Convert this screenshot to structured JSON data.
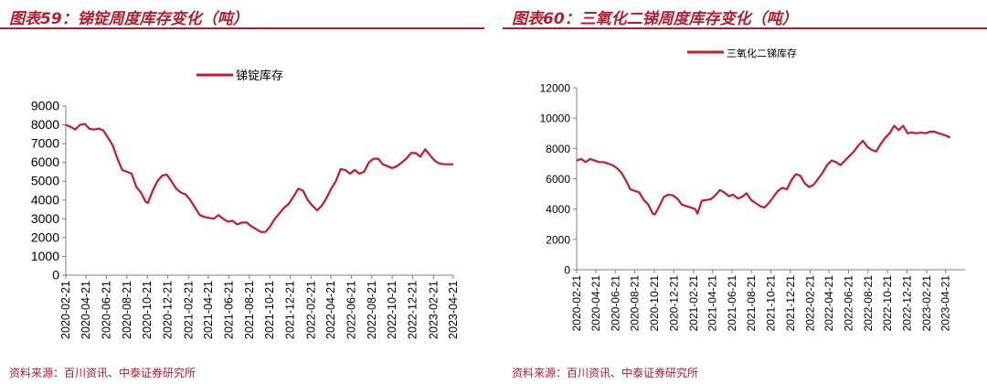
{
  "colors": {
    "series": "#c8192e",
    "title": "#b71c2b",
    "axis": "#7f7f7f"
  },
  "source_left": "资料来源：百川资讯、中泰证券研究所",
  "source_right": "资料来源：百川资讯、中泰证券研究所",
  "chart_data": [
    {
      "title": "图表59：锑锭周度库存变化（吨）",
      "type": "line",
      "ylim": [
        0,
        9000
      ],
      "yticks": [
        0,
        1000,
        2000,
        3000,
        4000,
        5000,
        6000,
        7000,
        8000,
        9000
      ],
      "xlim": [
        "2020-02-21",
        "2023-04-21"
      ],
      "xticks": [
        "2020-02-21",
        "2020-04-21",
        "2020-06-21",
        "2020-08-21",
        "2020-10-21",
        "2020-12-21",
        "2021-02-21",
        "2021-04-21",
        "2021-06-21",
        "2021-08-21",
        "2021-10-21",
        "2021-12-21",
        "2022-02-21",
        "2022-04-21",
        "2022-06-21",
        "2022-08-21",
        "2022-10-21",
        "2022-12-21",
        "2023-02-21",
        "2023-04-21"
      ],
      "legend_position": "top",
      "grid": false,
      "series": [
        {
          "name": "锑锭库存",
          "points": [
            [
              "2020-02-21",
              8000
            ],
            [
              "2020-03-06",
              7900
            ],
            [
              "2020-03-20",
              7750
            ],
            [
              "2020-04-03",
              8000
            ],
            [
              "2020-04-17",
              8050
            ],
            [
              "2020-05-01",
              7800
            ],
            [
              "2020-05-15",
              7750
            ],
            [
              "2020-05-29",
              7800
            ],
            [
              "2020-06-12",
              7700
            ],
            [
              "2020-06-26",
              7300
            ],
            [
              "2020-07-10",
              6900
            ],
            [
              "2020-07-24",
              6200
            ],
            [
              "2020-08-07",
              5600
            ],
            [
              "2020-08-21",
              5500
            ],
            [
              "2020-09-04",
              5400
            ],
            [
              "2020-09-18",
              4700
            ],
            [
              "2020-10-02",
              4400
            ],
            [
              "2020-10-16",
              3900
            ],
            [
              "2020-10-23",
              3850
            ],
            [
              "2020-11-06",
              4500
            ],
            [
              "2020-11-20",
              5000
            ],
            [
              "2020-12-04",
              5300
            ],
            [
              "2020-12-18",
              5350
            ],
            [
              "2021-01-01",
              5000
            ],
            [
              "2021-01-15",
              4600
            ],
            [
              "2021-01-29",
              4400
            ],
            [
              "2021-02-12",
              4300
            ],
            [
              "2021-02-26",
              4000
            ],
            [
              "2021-03-12",
              3600
            ],
            [
              "2021-03-26",
              3200
            ],
            [
              "2021-04-09",
              3100
            ],
            [
              "2021-04-23",
              3050
            ],
            [
              "2021-05-07",
              3000
            ],
            [
              "2021-05-21",
              3200
            ],
            [
              "2021-06-04",
              3000
            ],
            [
              "2021-06-18",
              2850
            ],
            [
              "2021-07-02",
              2900
            ],
            [
              "2021-07-16",
              2700
            ],
            [
              "2021-07-30",
              2800
            ],
            [
              "2021-08-13",
              2800
            ],
            [
              "2021-08-27",
              2600
            ],
            [
              "2021-09-10",
              2450
            ],
            [
              "2021-09-24",
              2300
            ],
            [
              "2021-10-08",
              2300
            ],
            [
              "2021-10-22",
              2600
            ],
            [
              "2021-11-05",
              3000
            ],
            [
              "2021-11-19",
              3300
            ],
            [
              "2021-12-03",
              3600
            ],
            [
              "2021-12-17",
              3800
            ],
            [
              "2021-12-31",
              4200
            ],
            [
              "2022-01-14",
              4600
            ],
            [
              "2022-01-28",
              4500
            ],
            [
              "2022-02-11",
              4000
            ],
            [
              "2022-02-25",
              3700
            ],
            [
              "2022-03-11",
              3450
            ],
            [
              "2022-03-25",
              3700
            ],
            [
              "2022-04-08",
              4100
            ],
            [
              "2022-04-22",
              4600
            ],
            [
              "2022-05-06",
              5000
            ],
            [
              "2022-05-20",
              5650
            ],
            [
              "2022-06-03",
              5600
            ],
            [
              "2022-06-17",
              5400
            ],
            [
              "2022-07-01",
              5600
            ],
            [
              "2022-07-15",
              5400
            ],
            [
              "2022-07-29",
              5500
            ],
            [
              "2022-08-12",
              6000
            ],
            [
              "2022-08-26",
              6200
            ],
            [
              "2022-09-09",
              6200
            ],
            [
              "2022-09-23",
              5900
            ],
            [
              "2022-10-07",
              5800
            ],
            [
              "2022-10-21",
              5700
            ],
            [
              "2022-11-04",
              5800
            ],
            [
              "2022-11-18",
              6000
            ],
            [
              "2022-12-02",
              6200
            ],
            [
              "2022-12-16",
              6500
            ],
            [
              "2022-12-30",
              6500
            ],
            [
              "2023-01-13",
              6300
            ],
            [
              "2023-01-27",
              6700
            ],
            [
              "2023-02-10",
              6400
            ],
            [
              "2023-02-24",
              6100
            ],
            [
              "2023-03-10",
              5950
            ],
            [
              "2023-03-24",
              5900
            ],
            [
              "2023-04-07",
              5900
            ],
            [
              "2023-04-21",
              5900
            ]
          ]
        }
      ]
    },
    {
      "title": "图表60：三氧化二锑周度库存变化（吨）",
      "type": "line",
      "ylim": [
        0,
        12000
      ],
      "yticks": [
        0,
        2000,
        4000,
        6000,
        8000,
        10000,
        12000
      ],
      "xlim": [
        "2020-02-21",
        "2023-06-21"
      ],
      "xticks": [
        "2020-02-21",
        "2020-04-21",
        "2020-06-21",
        "2020-08-21",
        "2020-10-21",
        "2020-12-21",
        "2021-02-21",
        "2021-04-21",
        "2021-06-21",
        "2021-08-21",
        "2021-10-21",
        "2021-12-21",
        "2022-02-21",
        "2022-04-21",
        "2022-06-21",
        "2022-08-21",
        "2022-10-21",
        "2022-12-21",
        "2023-02-21",
        "2023-04-21"
      ],
      "legend_position": "top",
      "grid": false,
      "series": [
        {
          "name": "三氧化二锑库存",
          "points": [
            [
              "2020-02-21",
              7200
            ],
            [
              "2020-03-06",
              7300
            ],
            [
              "2020-03-20",
              7100
            ],
            [
              "2020-04-03",
              7300
            ],
            [
              "2020-04-17",
              7200
            ],
            [
              "2020-05-01",
              7100
            ],
            [
              "2020-05-15",
              7100
            ],
            [
              "2020-05-29",
              7000
            ],
            [
              "2020-06-12",
              6900
            ],
            [
              "2020-06-26",
              6700
            ],
            [
              "2020-07-10",
              6400
            ],
            [
              "2020-07-24",
              5900
            ],
            [
              "2020-08-07",
              5300
            ],
            [
              "2020-08-21",
              5200
            ],
            [
              "2020-09-04",
              5100
            ],
            [
              "2020-09-18",
              4600
            ],
            [
              "2020-10-02",
              4300
            ],
            [
              "2020-10-16",
              3700
            ],
            [
              "2020-10-23",
              3650
            ],
            [
              "2020-11-06",
              4200
            ],
            [
              "2020-11-20",
              4800
            ],
            [
              "2020-12-04",
              4950
            ],
            [
              "2020-12-18",
              4900
            ],
            [
              "2021-01-01",
              4700
            ],
            [
              "2021-01-15",
              4300
            ],
            [
              "2021-01-29",
              4200
            ],
            [
              "2021-02-12",
              4100
            ],
            [
              "2021-02-26",
              4000
            ],
            [
              "2021-03-05",
              3700
            ],
            [
              "2021-03-19",
              4550
            ],
            [
              "2021-04-02",
              4600
            ],
            [
              "2021-04-16",
              4650
            ],
            [
              "2021-04-30",
              4900
            ],
            [
              "2021-05-14",
              5250
            ],
            [
              "2021-05-28",
              5100
            ],
            [
              "2021-06-11",
              4850
            ],
            [
              "2021-06-25",
              4950
            ],
            [
              "2021-07-09",
              4700
            ],
            [
              "2021-07-23",
              4800
            ],
            [
              "2021-08-06",
              5050
            ],
            [
              "2021-08-20",
              4600
            ],
            [
              "2021-09-03",
              4400
            ],
            [
              "2021-09-17",
              4200
            ],
            [
              "2021-10-01",
              4100
            ],
            [
              "2021-10-15",
              4400
            ],
            [
              "2021-10-29",
              4800
            ],
            [
              "2021-11-12",
              5200
            ],
            [
              "2021-11-26",
              5400
            ],
            [
              "2021-12-10",
              5300
            ],
            [
              "2021-12-24",
              5900
            ],
            [
              "2022-01-07",
              6300
            ],
            [
              "2022-01-21",
              6200
            ],
            [
              "2022-02-04",
              5700
            ],
            [
              "2022-02-18",
              5450
            ],
            [
              "2022-03-04",
              5600
            ],
            [
              "2022-03-18",
              6000
            ],
            [
              "2022-04-01",
              6400
            ],
            [
              "2022-04-15",
              6900
            ],
            [
              "2022-04-29",
              7200
            ],
            [
              "2022-05-13",
              7100
            ],
            [
              "2022-05-27",
              6900
            ],
            [
              "2022-06-10",
              7200
            ],
            [
              "2022-06-24",
              7500
            ],
            [
              "2022-07-08",
              7800
            ],
            [
              "2022-07-22",
              8200
            ],
            [
              "2022-08-05",
              8500
            ],
            [
              "2022-08-19",
              8100
            ],
            [
              "2022-09-02",
              7900
            ],
            [
              "2022-09-16",
              7800
            ],
            [
              "2022-09-30",
              8300
            ],
            [
              "2022-10-14",
              8700
            ],
            [
              "2022-10-28",
              9000
            ],
            [
              "2022-11-11",
              9500
            ],
            [
              "2022-11-25",
              9200
            ],
            [
              "2022-12-09",
              9500
            ],
            [
              "2022-12-23",
              9000
            ],
            [
              "2023-01-06",
              9050
            ],
            [
              "2023-01-20",
              9000
            ],
            [
              "2023-02-03",
              9050
            ],
            [
              "2023-02-17",
              9000
            ],
            [
              "2023-03-03",
              9100
            ],
            [
              "2023-03-17",
              9100
            ],
            [
              "2023-03-31",
              9000
            ],
            [
              "2023-04-14",
              8900
            ],
            [
              "2023-04-28",
              8800
            ],
            [
              "2023-05-05",
              8700
            ]
          ]
        }
      ]
    }
  ]
}
